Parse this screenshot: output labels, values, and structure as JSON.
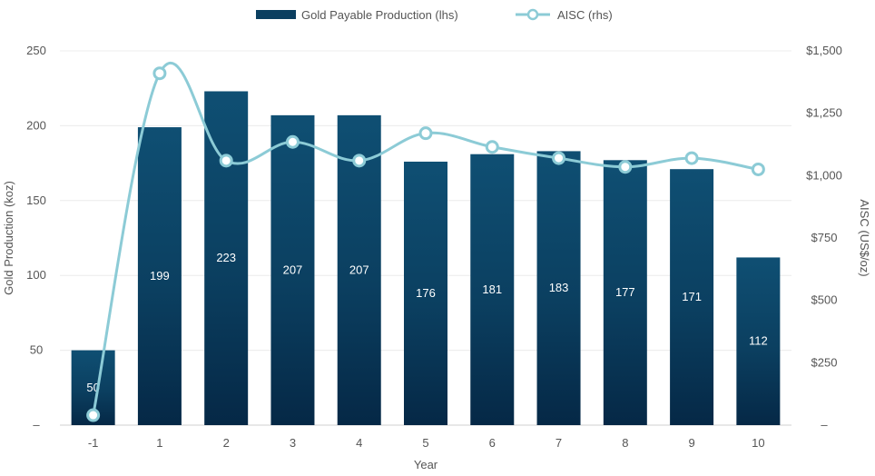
{
  "chart_data": {
    "type": "bar",
    "categories": [
      "-1",
      "1",
      "2",
      "3",
      "4",
      "5",
      "6",
      "7",
      "8",
      "9",
      "10"
    ],
    "series": [
      {
        "name": "Gold Payable Production (lhs)",
        "type": "bar",
        "axis": "left",
        "values": [
          50,
          199,
          223,
          207,
          207,
          176,
          181,
          183,
          177,
          171,
          112
        ],
        "data_labels": [
          "50",
          "199",
          "223",
          "207",
          "207",
          "176",
          "181",
          "183",
          "177",
          "171",
          "112"
        ],
        "color": "#0f4f73"
      },
      {
        "name": "AISC (rhs)",
        "type": "line",
        "axis": "right",
        "values": [
          40,
          1410,
          1060,
          1135,
          1060,
          1170,
          1115,
          1070,
          1035,
          1070,
          1025
        ],
        "color": "#8ccbd6"
      }
    ],
    "xlabel": "Year",
    "ylabel_left": "Gold Production (koz)",
    "ylabel_right": "AISC (US$/oz)",
    "ylim_left": [
      0,
      250
    ],
    "ylim_right": [
      0,
      1500
    ],
    "yticks_left": [
      "–",
      "50",
      "100",
      "150",
      "200",
      "250"
    ],
    "yticks_right": [
      "–",
      "$250",
      "$500",
      "$750",
      "$1,000",
      "$1,250",
      "$1,500"
    ],
    "grid": true,
    "legend_position": "top-center"
  }
}
